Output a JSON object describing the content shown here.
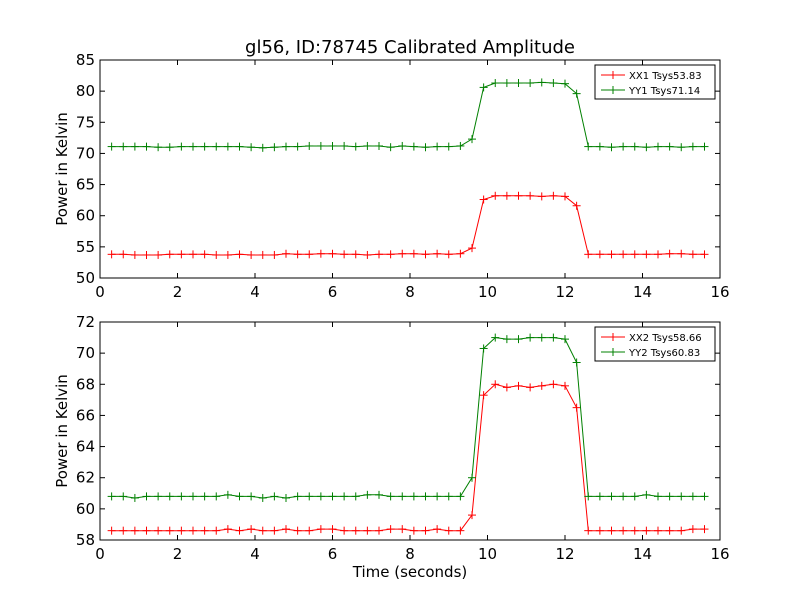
{
  "title": "gl56, ID:78745 Calibrated Amplitude",
  "chart_data": [
    {
      "type": "line",
      "ylabel": "Power in Kelvin",
      "xlabel": "",
      "xlim": [
        0,
        16
      ],
      "ylim": [
        50,
        85
      ],
      "xticks": [
        0,
        2,
        4,
        6,
        8,
        10,
        12,
        14,
        16
      ],
      "yticks": [
        50,
        55,
        60,
        65,
        70,
        75,
        80,
        85
      ],
      "legend_position": "top-right",
      "grid": false,
      "x": [
        0.3,
        0.6,
        0.9,
        1.2,
        1.5,
        1.8,
        2.1,
        2.4,
        2.7,
        3.0,
        3.3,
        3.6,
        3.9,
        4.2,
        4.5,
        4.8,
        5.1,
        5.4,
        5.7,
        6.0,
        6.3,
        6.6,
        6.9,
        7.2,
        7.5,
        7.8,
        8.1,
        8.4,
        8.7,
        9.0,
        9.3,
        9.6,
        9.9,
        10.2,
        10.5,
        10.8,
        11.1,
        11.4,
        11.7,
        12.0,
        12.3,
        12.6,
        12.9,
        13.2,
        13.5,
        13.8,
        14.1,
        14.4,
        14.7,
        15.0,
        15.3,
        15.6
      ],
      "series": [
        {
          "name": "XX1 Tsys53.83",
          "color": "#ff0000",
          "values": [
            53.8,
            53.8,
            53.7,
            53.7,
            53.7,
            53.8,
            53.8,
            53.8,
            53.8,
            53.7,
            53.7,
            53.8,
            53.7,
            53.7,
            53.7,
            53.9,
            53.8,
            53.8,
            53.9,
            53.9,
            53.8,
            53.8,
            53.7,
            53.8,
            53.8,
            53.9,
            53.9,
            53.8,
            53.9,
            53.8,
            53.9,
            54.8,
            62.6,
            63.2,
            63.2,
            63.2,
            63.2,
            63.1,
            63.2,
            63.1,
            61.6,
            53.8,
            53.8,
            53.8,
            53.8,
            53.8,
            53.8,
            53.8,
            53.9,
            53.9,
            53.8,
            53.8
          ]
        },
        {
          "name": "YY1 Tsys71.14",
          "color": "#008000",
          "values": [
            71.1,
            71.1,
            71.1,
            71.1,
            71.0,
            71.0,
            71.1,
            71.1,
            71.1,
            71.1,
            71.1,
            71.1,
            71.0,
            70.9,
            71.0,
            71.1,
            71.1,
            71.2,
            71.2,
            71.2,
            71.2,
            71.1,
            71.2,
            71.2,
            71.0,
            71.2,
            71.1,
            71.0,
            71.1,
            71.1,
            71.2,
            72.3,
            80.6,
            81.3,
            81.3,
            81.3,
            81.3,
            81.4,
            81.3,
            81.2,
            79.6,
            71.1,
            71.1,
            71.0,
            71.1,
            71.1,
            71.0,
            71.1,
            71.1,
            71.0,
            71.1,
            71.1
          ]
        }
      ]
    },
    {
      "type": "line",
      "ylabel": "Power in Kelvin",
      "xlabel": "Time (seconds)",
      "xlim": [
        0,
        16
      ],
      "ylim": [
        58,
        72
      ],
      "xticks": [
        0,
        2,
        4,
        6,
        8,
        10,
        12,
        14,
        16
      ],
      "yticks": [
        58,
        60,
        62,
        64,
        66,
        68,
        70,
        72
      ],
      "legend_position": "top-right",
      "grid": false,
      "x": [
        0.3,
        0.6,
        0.9,
        1.2,
        1.5,
        1.8,
        2.1,
        2.4,
        2.7,
        3.0,
        3.3,
        3.6,
        3.9,
        4.2,
        4.5,
        4.8,
        5.1,
        5.4,
        5.7,
        6.0,
        6.3,
        6.6,
        6.9,
        7.2,
        7.5,
        7.8,
        8.1,
        8.4,
        8.7,
        9.0,
        9.3,
        9.6,
        9.9,
        10.2,
        10.5,
        10.8,
        11.1,
        11.4,
        11.7,
        12.0,
        12.3,
        12.6,
        12.9,
        13.2,
        13.5,
        13.8,
        14.1,
        14.4,
        14.7,
        15.0,
        15.3,
        15.6
      ],
      "series": [
        {
          "name": "XX2 Tsys58.66",
          "color": "#ff0000",
          "values": [
            58.6,
            58.6,
            58.6,
            58.6,
            58.6,
            58.6,
            58.6,
            58.6,
            58.6,
            58.6,
            58.7,
            58.6,
            58.7,
            58.6,
            58.6,
            58.7,
            58.6,
            58.6,
            58.7,
            58.7,
            58.6,
            58.6,
            58.6,
            58.6,
            58.7,
            58.7,
            58.6,
            58.6,
            58.7,
            58.6,
            58.6,
            59.6,
            67.3,
            68.0,
            67.8,
            67.9,
            67.8,
            67.9,
            68.0,
            67.9,
            66.5,
            58.6,
            58.6,
            58.6,
            58.6,
            58.6,
            58.6,
            58.6,
            58.6,
            58.6,
            58.7,
            58.7
          ]
        },
        {
          "name": "YY2 Tsys60.83",
          "color": "#008000",
          "values": [
            60.8,
            60.8,
            60.7,
            60.8,
            60.8,
            60.8,
            60.8,
            60.8,
            60.8,
            60.8,
            60.9,
            60.8,
            60.8,
            60.7,
            60.8,
            60.7,
            60.8,
            60.8,
            60.8,
            60.8,
            60.8,
            60.8,
            60.9,
            60.9,
            60.8,
            60.8,
            60.8,
            60.8,
            60.8,
            60.8,
            60.8,
            62.0,
            70.3,
            71.0,
            70.9,
            70.9,
            71.0,
            71.0,
            71.0,
            70.9,
            69.4,
            60.8,
            60.8,
            60.8,
            60.8,
            60.8,
            60.9,
            60.8,
            60.8,
            60.8,
            60.8,
            60.8
          ]
        }
      ]
    }
  ]
}
